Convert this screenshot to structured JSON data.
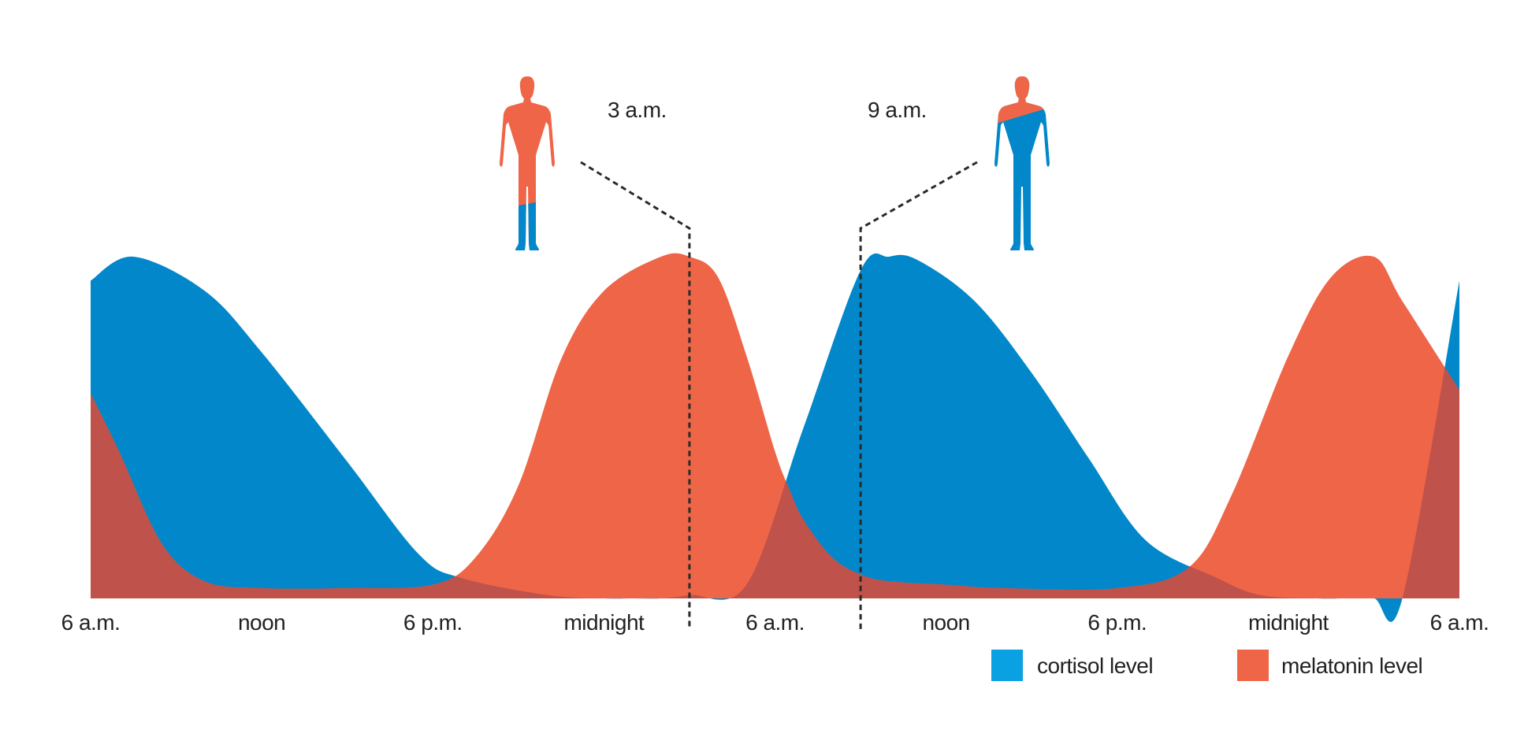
{
  "chart_data": {
    "type": "area",
    "x_ticks": [
      "6 a.m.",
      "noon",
      "6 p.m.",
      "midnight",
      "6 a.m.",
      "noon",
      "6 p.m.",
      "midnight",
      "6 a.m."
    ],
    "x_unit": "hours",
    "x_range": [
      0,
      48
    ],
    "y_range": [
      0,
      1
    ],
    "grid": false,
    "legend_position": "bottom-right",
    "series": [
      {
        "name": "cortisol level",
        "color": "#0288CA",
        "x": [
          0,
          1.5,
          4,
          6,
          9,
          11.5,
          13,
          16,
          18,
          19,
          20,
          21,
          23,
          25,
          27,
          28,
          29,
          31,
          33,
          35,
          37,
          39.5,
          41,
          43,
          44,
          45,
          46,
          48
        ],
        "values": [
          0.93,
          1.0,
          0.9,
          0.72,
          0.4,
          0.13,
          0.06,
          0.01,
          0.0,
          0.0,
          0.0,
          0.01,
          0.04,
          0.5,
          0.96,
          1.0,
          0.99,
          0.87,
          0.66,
          0.41,
          0.17,
          0.06,
          0.01,
          0.0,
          0.0,
          0.0,
          0.0,
          0.93
        ]
      },
      {
        "name": "melatonin level",
        "color": "#EF6548",
        "x": [
          0,
          1,
          2.5,
          4,
          6,
          9,
          12,
          13.5,
          15,
          16.5,
          18,
          20,
          21,
          22,
          23,
          24,
          24.5,
          25,
          26,
          27,
          28,
          30,
          32,
          36,
          38.5,
          40,
          42,
          43.5,
          45,
          46,
          48
        ],
        "values": [
          0.6,
          0.43,
          0.16,
          0.05,
          0.03,
          0.03,
          0.04,
          0.12,
          0.33,
          0.7,
          0.9,
          1.0,
          1.0,
          0.94,
          0.71,
          0.43,
          0.32,
          0.23,
          0.12,
          0.07,
          0.05,
          0.04,
          0.03,
          0.03,
          0.09,
          0.3,
          0.71,
          0.94,
          1.0,
          0.87,
          0.61
        ]
      }
    ],
    "annotations": [
      {
        "label": "3 a.m.",
        "x": 21,
        "figure": "melatonin-dominant"
      },
      {
        "label": "9 a.m.",
        "x": 27,
        "figure": "cortisol-dominant"
      }
    ],
    "overlap_color": "#BF524A",
    "line_color": "#2b2b2b"
  },
  "legend": [
    {
      "label": "cortisol level",
      "color": "#0AA1E2"
    },
    {
      "label": "melatonin level",
      "color": "#EF6548"
    }
  ]
}
